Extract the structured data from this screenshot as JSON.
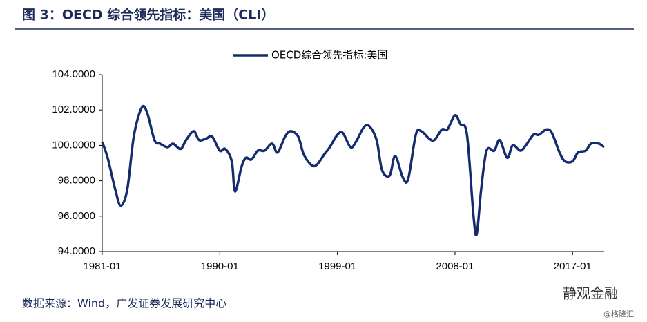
{
  "chart_data": {
    "type": "line",
    "title": "图 3：OECD 综合领先指标：美国（CLI）",
    "source": "数据来源：Wind，广发证券发展研究中心",
    "watermark": "静观金融",
    "credit": "@格隆汇",
    "xlim": [
      "1981-01",
      "2019-06"
    ],
    "xticks": [
      "1981-01",
      "1990-01",
      "1999-01",
      "2008-01",
      "2017-01"
    ],
    "ylim": [
      94,
      104
    ],
    "yticks": [
      {
        "value": 94,
        "label": "94.0000"
      },
      {
        "value": 96,
        "label": "96.0000"
      },
      {
        "value": 98,
        "label": "98.0000"
      },
      {
        "value": 100,
        "label": "100.0000"
      },
      {
        "value": 102,
        "label": "102.0000"
      },
      {
        "value": 104,
        "label": "104.0000"
      }
    ],
    "x": [
      "1981-01",
      "1981-06",
      "1982-01",
      "1982-06",
      "1982-12",
      "1983-06",
      "1984-01",
      "1984-06",
      "1985-01",
      "1985-06",
      "1986-01",
      "1986-06",
      "1987-01",
      "1987-06",
      "1988-01",
      "1988-06",
      "1989-01",
      "1989-06",
      "1990-01",
      "1990-06",
      "1990-12",
      "1991-03",
      "1991-09",
      "1992-01",
      "1992-06",
      "1992-12",
      "1993-06",
      "1994-01",
      "1994-06",
      "1995-01",
      "1995-06",
      "1996-01",
      "1996-06",
      "1997-01",
      "1997-06",
      "1998-01",
      "1998-06",
      "1999-01",
      "1999-06",
      "2000-01",
      "2000-06",
      "2001-01",
      "2001-06",
      "2002-01",
      "2002-06",
      "2003-01",
      "2003-06",
      "2004-01",
      "2004-06",
      "2005-01",
      "2005-06",
      "2006-01",
      "2006-06",
      "2007-01",
      "2007-06",
      "2008-01",
      "2008-06",
      "2008-12",
      "2009-06",
      "2009-09",
      "2010-01",
      "2010-06",
      "2011-01",
      "2011-06",
      "2012-01",
      "2012-06",
      "2013-01",
      "2013-06",
      "2014-01",
      "2014-06",
      "2015-01",
      "2015-06",
      "2016-01",
      "2016-06",
      "2017-01",
      "2017-06",
      "2018-01",
      "2018-06",
      "2019-01",
      "2019-06"
    ],
    "series": [
      {
        "name": "OECD综合领先指标:美国",
        "color": "#142c6e",
        "values": [
          100.2,
          99.3,
          97.5,
          96.6,
          97.5,
          100.5,
          102.1,
          101.9,
          100.3,
          100.1,
          99.9,
          100.1,
          99.8,
          100.3,
          100.8,
          100.3,
          100.4,
          100.5,
          99.7,
          99.8,
          99.1,
          97.4,
          98.8,
          99.3,
          99.2,
          99.7,
          99.7,
          100.1,
          99.6,
          100.5,
          100.8,
          100.5,
          99.5,
          98.9,
          98.9,
          99.5,
          99.9,
          100.6,
          100.7,
          99.9,
          100.2,
          101.0,
          101.1,
          100.3,
          98.6,
          98.3,
          99.4,
          98.2,
          98.1,
          100.6,
          100.8,
          100.4,
          100.3,
          100.9,
          100.9,
          101.7,
          101.2,
          100.6,
          96.0,
          95.0,
          97.5,
          99.7,
          99.7,
          100.3,
          99.3,
          100.0,
          99.7,
          100.0,
          100.6,
          100.6,
          100.9,
          100.7,
          99.6,
          99.1,
          99.1,
          99.6,
          99.7,
          100.1,
          100.1,
          99.9
        ]
      }
    ]
  }
}
